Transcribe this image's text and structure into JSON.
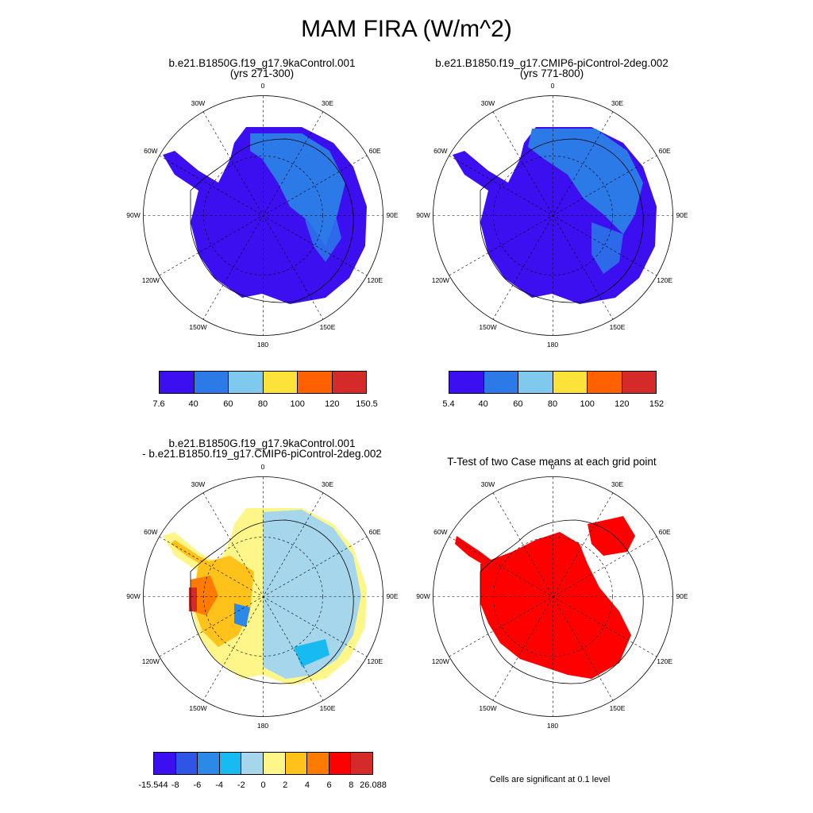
{
  "title": "MAM FIRA (W/m^2)",
  "panels": [
    {
      "title_line1": "b.e21.B1850G.f19_g17.9kaControl.001",
      "title_line2": "(yrs 271-300)"
    },
    {
      "title_line1": "b.e21.B1850.f19_g17.CMIP6-piControl-2deg.002",
      "title_line2": "(yrs 771-800)"
    },
    {
      "title_line1": "b.e21.B1850G.f19_g17.9kaControl.001",
      "title_line2": "- b.e21.B1850.f19_g17.CMIP6-piControl-2deg.002"
    },
    {
      "title_line1": "T-Test of two Case means at each grid point",
      "title_line2": ""
    }
  ],
  "lon_labels": [
    "0",
    "30E",
    "60E",
    "90E",
    "120E",
    "150E",
    "180",
    "150W",
    "120W",
    "90W",
    "60W",
    "30W"
  ],
  "colorbars": [
    {
      "labels": [
        "7.6",
        "40",
        "60",
        "80",
        "100",
        "120",
        "150.5"
      ],
      "colors": [
        "#3b0ff0",
        "#2b7ae8",
        "#7fc8ee",
        "#fde23a",
        "#ff6000",
        "#d42a2a"
      ]
    },
    {
      "labels": [
        "5.4",
        "40",
        "60",
        "80",
        "100",
        "120",
        "152"
      ],
      "colors": [
        "#3b0ff0",
        "#2b7ae8",
        "#7fc8ee",
        "#fde23a",
        "#ff6000",
        "#d42a2a"
      ]
    },
    {
      "labels": [
        "-15.544",
        "-8",
        "-6",
        "-4",
        "-2",
        "0",
        "2",
        "4",
        "6",
        "8",
        "26.088"
      ],
      "colors": [
        "#3b0ff0",
        "#2f55e6",
        "#2b8ae8",
        "#18baf2",
        "#a6d6ec",
        "#fff68a",
        "#ffc21a",
        "#ff7b00",
        "#ff0000",
        "#d42a2a"
      ]
    }
  ],
  "significance_note": "Cells are significant at 0.1 level"
}
